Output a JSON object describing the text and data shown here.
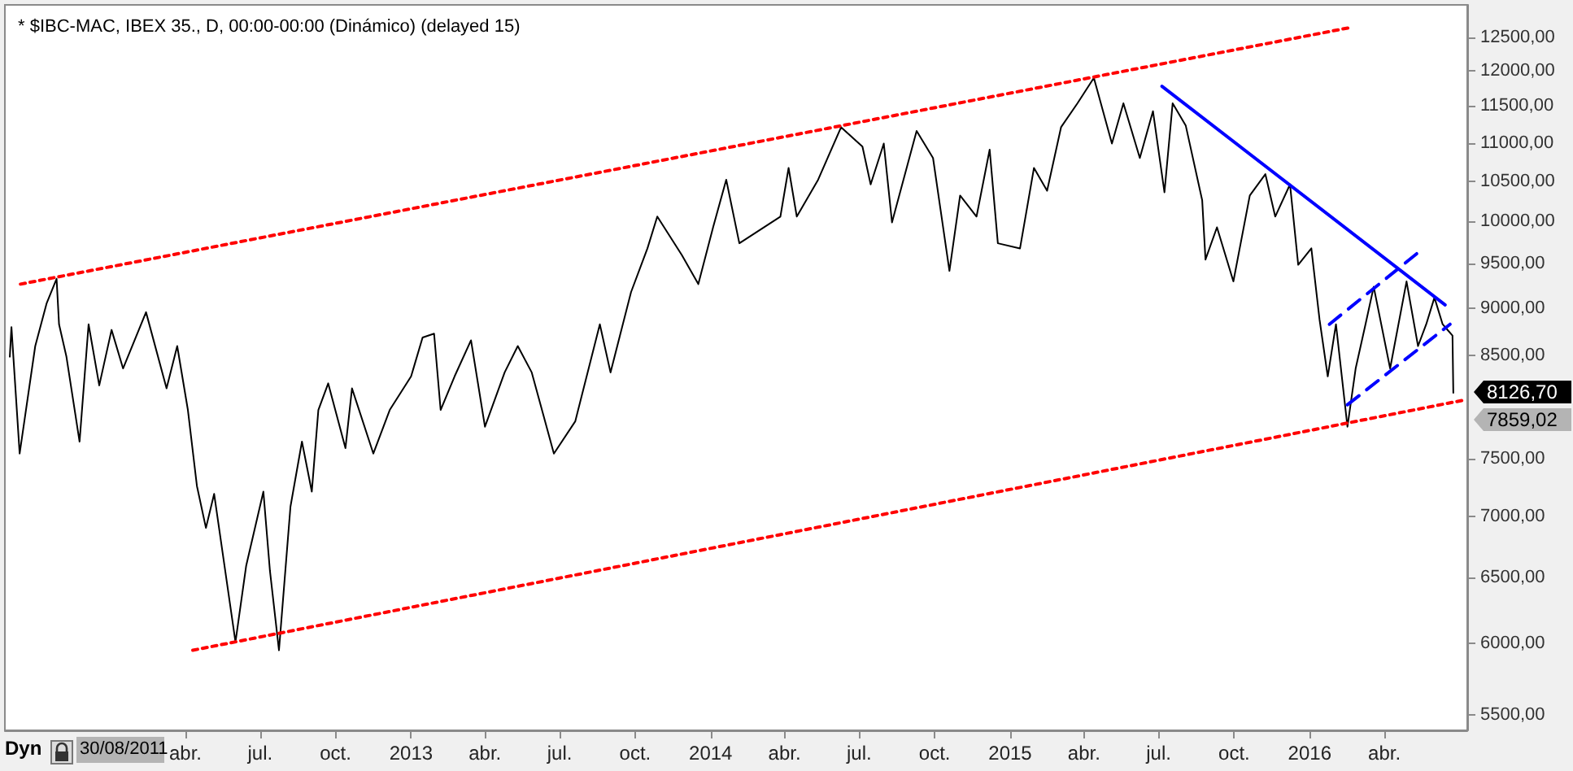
{
  "chart_data": {
    "type": "line",
    "title": "* $IBC-MAC, IBEX 35., D, 00:00-00:00 (Dinámico) (delayed 15)",
    "x": [
      "2011-08-31",
      "2011-09-02",
      "2011-09-12",
      "2011-10-01",
      "2011-10-15",
      "2011-10-27",
      "2011-10-30",
      "2011-11-08",
      "2011-11-24",
      "2011-12-05",
      "2011-12-18",
      "2012-01-02",
      "2012-01-16",
      "2012-02-13",
      "2012-03-09",
      "2012-03-22",
      "2012-04-04",
      "2012-04-15",
      "2012-04-26",
      "2012-05-06",
      "2012-06-01",
      "2012-06-14",
      "2012-07-05",
      "2012-07-13",
      "2012-07-24",
      "2012-08-07",
      "2012-08-21",
      "2012-09-02",
      "2012-09-10",
      "2012-09-22",
      "2012-10-13",
      "2012-10-21",
      "2012-11-16",
      "2012-12-06",
      "2013-01-01",
      "2013-01-15",
      "2013-01-29",
      "2013-02-06",
      "2013-02-23",
      "2013-03-15",
      "2013-04-01",
      "2013-04-25",
      "2013-05-11",
      "2013-05-28",
      "2013-06-24",
      "2013-07-20",
      "2013-08-19",
      "2013-09-01",
      "2013-09-26",
      "2013-10-16",
      "2013-10-28",
      "2013-11-27",
      "2013-12-17",
      "2014-01-04",
      "2014-01-20",
      "2014-02-05",
      "2014-03-27",
      "2014-04-06",
      "2014-04-16",
      "2014-05-12",
      "2014-06-09",
      "2014-07-05",
      "2014-07-15",
      "2014-07-31",
      "2014-08-10",
      "2014-09-09",
      "2014-09-29",
      "2014-10-19",
      "2014-11-01",
      "2014-11-21",
      "2014-12-07",
      "2014-12-17",
      "2015-01-13",
      "2015-01-30",
      "2015-02-15",
      "2015-03-04",
      "2015-03-24",
      "2015-04-13",
      "2015-05-05",
      "2015-05-19",
      "2015-06-08",
      "2015-06-24",
      "2015-07-08",
      "2015-07-18",
      "2015-08-03",
      "2015-08-23",
      "2015-08-27",
      "2015-09-10",
      "2015-09-30",
      "2015-10-20",
      "2015-11-08",
      "2015-11-20",
      "2015-12-08",
      "2015-12-18",
      "2016-01-03",
      "2016-01-13",
      "2016-01-23",
      "2016-02-02",
      "2016-02-16",
      "2016-02-26",
      "2016-03-09",
      "2016-03-19",
      "2016-04-08",
      "2016-04-28",
      "2016-05-12",
      "2016-05-22",
      "2016-06-01",
      "2016-06-11",
      "2016-06-23",
      "2016-06-24"
    ],
    "series": [
      {
        "color": "#000000",
        "values": [
          8490,
          8800,
          7550,
          8600,
          9060,
          9330,
          8830,
          8490,
          7660,
          8830,
          8200,
          8770,
          8370,
          8960,
          8170,
          8600,
          7960,
          7260,
          6900,
          7190,
          6010,
          6590,
          7210,
          6550,
          5950,
          7080,
          7660,
          7210,
          7960,
          8220,
          7600,
          8170,
          7550,
          7960,
          8290,
          8690,
          8730,
          7960,
          8290,
          8660,
          7800,
          8330,
          8600,
          8330,
          7550,
          7850,
          8830,
          8330,
          9180,
          9680,
          10060,
          9600,
          9270,
          9930,
          10520,
          9740,
          10060,
          10670,
          10060,
          10520,
          11210,
          10950,
          10460,
          10990,
          9990,
          11160,
          10800,
          9420,
          10320,
          10060,
          10910,
          9740,
          9680,
          10670,
          10380,
          11210,
          11540,
          11900,
          10990,
          11540,
          10800,
          11430,
          10360,
          11540,
          11230,
          10260,
          9550,
          9930,
          9300,
          10320,
          10590,
          10060,
          10460,
          9490,
          9680,
          8880,
          8290,
          8830,
          7800,
          8370,
          8830,
          9240,
          8370,
          9300,
          8600,
          8830,
          9120,
          8830,
          8710,
          8126.7
        ]
      },
      {
        "type": "line",
        "color": "#ff0000",
        "line_style": "dotted",
        "x": [
          "2011-09-13",
          "2016-02-20"
        ],
        "values": [
          9270,
          12650
        ]
      },
      {
        "type": "line",
        "color": "#ff0000",
        "line_style": "dotted",
        "x": [
          "2012-04-10",
          "2016-07-10"
        ],
        "values": [
          5950,
          8060
        ]
      },
      {
        "type": "line",
        "color": "#0000ff",
        "line_style": "solid",
        "x": [
          "2015-07-05",
          "2016-06-14"
        ],
        "values": [
          11780,
          9040
        ]
      },
      {
        "type": "line",
        "color": "#0000ff",
        "line_style": "dashed",
        "x": [
          "2016-01-25",
          "2016-05-12"
        ],
        "values": [
          8830,
          9630
        ]
      },
      {
        "type": "line",
        "color": "#0000ff",
        "line_style": "dashed",
        "x": [
          "2016-02-16",
          "2016-06-20"
        ],
        "values": [
          8010,
          8830
        ]
      }
    ],
    "xlim": [
      "2011-08-25",
      "2016-07-11"
    ],
    "xticks": [
      {
        "value": "2012-04-01",
        "label": "abr."
      },
      {
        "value": "2012-07-01",
        "label": "jul."
      },
      {
        "value": "2012-10-01",
        "label": "oct."
      },
      {
        "value": "2013-01-01",
        "label": "2013"
      },
      {
        "value": "2013-04-01",
        "label": "abr."
      },
      {
        "value": "2013-07-01",
        "label": "jul."
      },
      {
        "value": "2013-10-01",
        "label": "oct."
      },
      {
        "value": "2014-01-01",
        "label": "2014"
      },
      {
        "value": "2014-04-01",
        "label": "abr."
      },
      {
        "value": "2014-07-01",
        "label": "jul."
      },
      {
        "value": "2014-10-01",
        "label": "oct."
      },
      {
        "value": "2015-01-01",
        "label": "2015"
      },
      {
        "value": "2015-04-01",
        "label": "abr."
      },
      {
        "value": "2015-07-01",
        "label": "jul."
      },
      {
        "value": "2015-10-01",
        "label": "oct."
      },
      {
        "value": "2016-01-01",
        "label": "2016"
      },
      {
        "value": "2016-04-01",
        "label": "abr."
      }
    ],
    "ylim": [
      5400,
      13000
    ],
    "yticks": [
      {
        "value": 5500,
        "label": "5500,00"
      },
      {
        "value": 6000,
        "label": "6000,00"
      },
      {
        "value": 6500,
        "label": "6500,00"
      },
      {
        "value": 7000,
        "label": "7000,00"
      },
      {
        "value": 7500,
        "label": "7500,00"
      },
      {
        "value": 8500,
        "label": "8500,00"
      },
      {
        "value": 9000,
        "label": "9000,00"
      },
      {
        "value": 9500,
        "label": "9500,00"
      },
      {
        "value": 10000,
        "label": "10000,00"
      },
      {
        "value": 10500,
        "label": "10500,00"
      },
      {
        "value": 11000,
        "label": "11000,00"
      },
      {
        "value": 11500,
        "label": "11500,00"
      },
      {
        "value": 12000,
        "label": "12000,00"
      },
      {
        "value": 12500,
        "label": "12500,00"
      }
    ],
    "log": true,
    "grid": false,
    "annotations": [
      "Dyn",
      "30/08/2011",
      {
        "text": "8126,70",
        "x": "2016-06-24",
        "y": 8126.7
      },
      "7859,02"
    ]
  }
}
